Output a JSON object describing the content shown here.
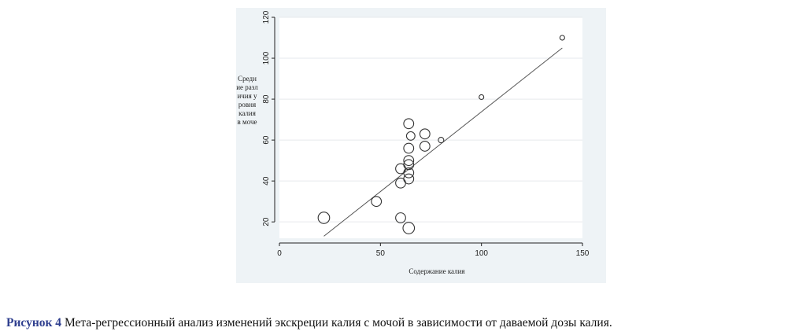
{
  "chart_data": {
    "type": "scatter",
    "xlabel": "Содержание калия",
    "ylabel": "Средние различия уровня калия в моче",
    "xlim": [
      0,
      150
    ],
    "ylim": [
      12,
      120
    ],
    "xticks": [
      0,
      50,
      100,
      150
    ],
    "yticks": [
      20,
      40,
      60,
      80,
      100,
      120
    ],
    "grid": true,
    "points": [
      {
        "x": 22,
        "y": 22,
        "size": 6
      },
      {
        "x": 48,
        "y": 30,
        "size": 5
      },
      {
        "x": 60,
        "y": 22,
        "size": 5
      },
      {
        "x": 60,
        "y": 39,
        "size": 5
      },
      {
        "x": 60,
        "y": 46,
        "size": 5
      },
      {
        "x": 64,
        "y": 17,
        "size": 6
      },
      {
        "x": 64,
        "y": 41,
        "size": 5
      },
      {
        "x": 64,
        "y": 44,
        "size": 5
      },
      {
        "x": 64,
        "y": 48,
        "size": 5
      },
      {
        "x": 64,
        "y": 50,
        "size": 5
      },
      {
        "x": 64,
        "y": 56,
        "size": 5
      },
      {
        "x": 64,
        "y": 68,
        "size": 5
      },
      {
        "x": 65,
        "y": 62,
        "size": 4
      },
      {
        "x": 72,
        "y": 57,
        "size": 5
      },
      {
        "x": 72,
        "y": 63,
        "size": 5
      },
      {
        "x": 80,
        "y": 60,
        "size": 2
      },
      {
        "x": 100,
        "y": 81,
        "size": 1.5
      },
      {
        "x": 140,
        "y": 110,
        "size": 1.5
      }
    ],
    "trendline": {
      "x": [
        22,
        140
      ],
      "y": [
        13,
        105
      ]
    }
  },
  "caption": {
    "figure_label": "Рисунок 4",
    "text": " Мета-регрессионный анализ изменений экскреции калия с мочой в зависимости от даваемой дозы калия."
  },
  "colors": {
    "panel_bg": "#eef3f6",
    "plot_bg": "#ffffff",
    "grid": "#e6e9ec",
    "marker": "#333333",
    "line": "#555555",
    "caption_label": "#2f3f8f"
  }
}
